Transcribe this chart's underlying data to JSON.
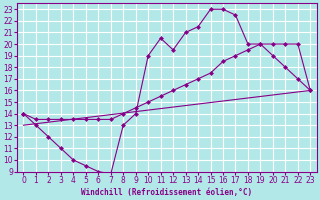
{
  "xlabel": "Windchill (Refroidissement éolien,°C)",
  "background_color": "#b3e8e8",
  "grid_color": "#ffffff",
  "line_color": "#880088",
  "xlim": [
    -0.5,
    23.5
  ],
  "ylim": [
    9,
    23.5
  ],
  "xticks": [
    0,
    1,
    2,
    3,
    4,
    5,
    6,
    7,
    8,
    9,
    10,
    11,
    12,
    13,
    14,
    15,
    16,
    17,
    18,
    19,
    20,
    21,
    22,
    23
  ],
  "yticks": [
    9,
    10,
    11,
    12,
    13,
    14,
    15,
    16,
    17,
    18,
    19,
    20,
    21,
    22,
    23
  ],
  "line1_x": [
    0,
    1,
    2,
    3,
    4,
    5,
    6,
    7,
    8,
    9,
    10,
    11,
    12,
    13,
    14,
    15,
    16,
    17,
    18,
    19,
    20,
    21,
    22,
    23
  ],
  "line1_y": [
    14,
    13,
    12,
    11,
    10,
    9.5,
    9,
    8.8,
    13,
    14,
    19,
    20.5,
    19.5,
    21,
    21.5,
    23,
    23,
    22.5,
    20,
    20,
    19,
    18,
    17,
    16
  ],
  "line2_x": [
    0,
    1,
    2,
    3,
    4,
    5,
    6,
    7,
    8,
    9,
    10,
    11,
    12,
    13,
    14,
    15,
    16,
    17,
    18,
    19,
    20,
    21,
    22,
    23
  ],
  "line2_y": [
    14,
    13.5,
    13.5,
    13.5,
    13.5,
    13.5,
    13.5,
    13.5,
    14,
    14.5,
    15,
    15.5,
    16,
    16.5,
    17,
    17.5,
    18.5,
    19,
    19.5,
    20,
    20,
    20,
    20,
    16
  ],
  "line3_x": [
    0,
    23
  ],
  "line3_y": [
    13,
    16
  ]
}
